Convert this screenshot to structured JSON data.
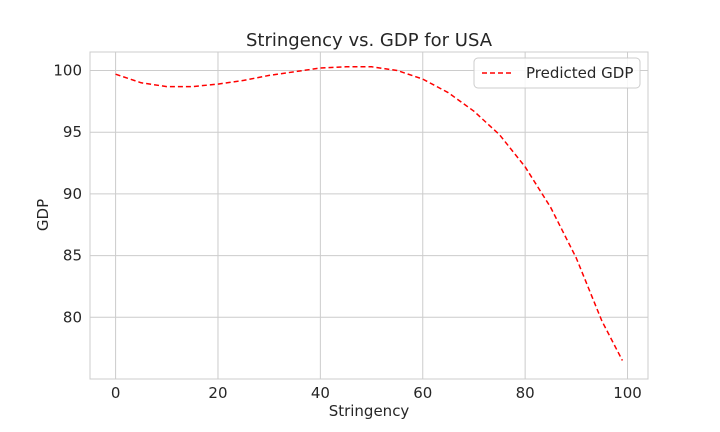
{
  "chart_data": {
    "type": "line",
    "title": "Stringency vs. GDP for USA",
    "xlabel": "Stringency",
    "ylabel": "GDP",
    "xlim": [
      -5,
      104
    ],
    "ylim": [
      75,
      101.5
    ],
    "xticks": [
      0,
      20,
      40,
      60,
      80,
      100
    ],
    "yticks": [
      80,
      85,
      90,
      95,
      100
    ],
    "grid": true,
    "legend_position": "top-right",
    "series": [
      {
        "name": "Predicted GDP",
        "color": "#ff0000",
        "line_style": "dashed",
        "x": [
          0,
          5,
          10,
          15,
          20,
          25,
          30,
          35,
          40,
          45,
          50,
          55,
          60,
          65,
          70,
          75,
          80,
          85,
          90,
          95,
          99
        ],
        "y": [
          99.7,
          99.0,
          98.7,
          98.7,
          98.9,
          99.2,
          99.6,
          99.9,
          100.2,
          100.3,
          100.3,
          100.0,
          99.3,
          98.2,
          96.7,
          94.8,
          92.2,
          88.9,
          84.8,
          79.7,
          76.5
        ]
      }
    ]
  }
}
